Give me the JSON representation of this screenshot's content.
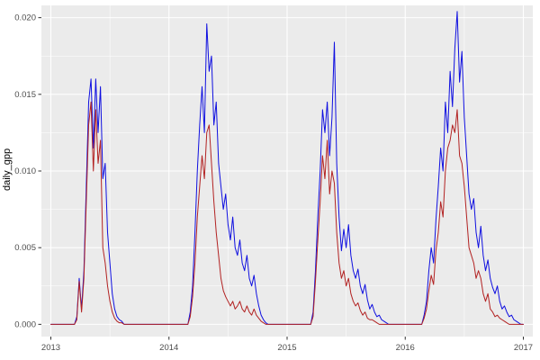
{
  "chart_data": {
    "type": "line",
    "title": "",
    "xlabel": "",
    "ylabel": "daily_gpp",
    "legend": "none",
    "grid": true,
    "theme": "ggplot-gray",
    "panel_background": "#EBEBEB",
    "grid_color": "#FFFFFF",
    "tick_mark_color": "#333333",
    "tick_text_color": "#4D4D4D",
    "xlim": [
      2012.92,
      2017.08
    ],
    "ylim": [
      -0.0008,
      0.0208
    ],
    "x_major_ticks": [
      2013,
      2014,
      2015,
      2016,
      2017
    ],
    "x_tick_labels": [
      "2013",
      "2014",
      "2015",
      "2016",
      "2017"
    ],
    "x_minor_ticks": [
      2013.5,
      2014.5,
      2015.5,
      2016.5
    ],
    "y_major_ticks": [
      0,
      0.005,
      0.01,
      0.015,
      0.02
    ],
    "y_tick_labels": [
      "0.000",
      "0.005",
      "0.010",
      "0.015",
      "0.020"
    ],
    "y_minor_ticks": [
      0.0025,
      0.0075,
      0.0125,
      0.0175
    ],
    "x_start": 2013.0,
    "x_step": 0.02,
    "x_end": 2017.0,
    "series": [
      {
        "name": "blue-series",
        "color": "#0F0FE0",
        "values": [
          0,
          0,
          0,
          0,
          0,
          0,
          0,
          0,
          0,
          0,
          0,
          0.0005,
          0.003,
          0.001,
          0.0035,
          0.009,
          0.0145,
          0.016,
          0.0115,
          0.016,
          0.0125,
          0.0155,
          0.0095,
          0.0105,
          0.006,
          0.004,
          0.002,
          0.001,
          0.0005,
          0.0003,
          0.0002,
          0,
          0,
          0,
          0,
          0,
          0,
          0,
          0,
          0,
          0,
          0,
          0,
          0,
          0,
          0,
          0,
          0,
          0,
          0,
          0,
          0,
          0,
          0,
          0,
          0,
          0,
          0,
          0,
          0.0008,
          0.0025,
          0.006,
          0.01,
          0.013,
          0.0155,
          0.0125,
          0.0196,
          0.0165,
          0.0175,
          0.013,
          0.0145,
          0.0105,
          0.009,
          0.0075,
          0.0085,
          0.0065,
          0.0055,
          0.007,
          0.005,
          0.0045,
          0.0055,
          0.004,
          0.0035,
          0.0045,
          0.003,
          0.0025,
          0.0032,
          0.002,
          0.0012,
          0.0006,
          0.0003,
          0.0001,
          0,
          0,
          0,
          0,
          0,
          0,
          0,
          0,
          0,
          0,
          0,
          0,
          0,
          0,
          0,
          0,
          0,
          0,
          0,
          0.0008,
          0.0035,
          0.007,
          0.01,
          0.014,
          0.0125,
          0.0145,
          0.011,
          0.0135,
          0.0184,
          0.0105,
          0.007,
          0.0048,
          0.0062,
          0.005,
          0.0065,
          0.0045,
          0.0035,
          0.003,
          0.0036,
          0.0025,
          0.002,
          0.0026,
          0.0016,
          0.001,
          0.0013,
          0.0008,
          0.0005,
          0.0006,
          0.0003,
          0.0002,
          0.0001,
          0,
          0,
          0,
          0,
          0,
          0,
          0,
          0,
          0,
          0,
          0,
          0,
          0,
          0,
          0,
          0.0006,
          0.0015,
          0.0035,
          0.005,
          0.004,
          0.0068,
          0.009,
          0.0115,
          0.01,
          0.0145,
          0.0125,
          0.0165,
          0.0142,
          0.018,
          0.0204,
          0.0158,
          0.0178,
          0.0135,
          0.011,
          0.0085,
          0.0075,
          0.0082,
          0.006,
          0.005,
          0.0064,
          0.0045,
          0.0035,
          0.0042,
          0.003,
          0.0024,
          0.002,
          0.0025,
          0.0015,
          0.001,
          0.0012,
          0.0008,
          0.0005,
          0.0006,
          0.0003,
          0.0002,
          0.0001,
          0,
          0
        ]
      },
      {
        "name": "red-series",
        "color": "#B22222",
        "values": [
          0,
          0,
          0,
          0,
          0,
          0,
          0,
          0,
          0,
          0,
          0,
          0.0003,
          0.0028,
          0.0008,
          0.003,
          0.008,
          0.013,
          0.0145,
          0.01,
          0.014,
          0.0105,
          0.012,
          0.005,
          0.004,
          0.0025,
          0.0015,
          0.0008,
          0.0004,
          0.0002,
          0.0001,
          0.0001,
          0,
          0,
          0,
          0,
          0,
          0,
          0,
          0,
          0,
          0,
          0,
          0,
          0,
          0,
          0,
          0,
          0,
          0,
          0,
          0,
          0,
          0,
          0,
          0,
          0,
          0,
          0,
          0,
          0.0005,
          0.0018,
          0.004,
          0.007,
          0.009,
          0.011,
          0.0095,
          0.0125,
          0.013,
          0.0105,
          0.008,
          0.006,
          0.0045,
          0.003,
          0.0022,
          0.0018,
          0.0015,
          0.0012,
          0.0015,
          0.001,
          0.0012,
          0.0015,
          0.001,
          0.0008,
          0.0012,
          0.0008,
          0.0006,
          0.001,
          0.0006,
          0.0004,
          0.0002,
          0.0001,
          0,
          0,
          0,
          0,
          0,
          0,
          0,
          0,
          0,
          0,
          0,
          0,
          0,
          0,
          0,
          0,
          0,
          0,
          0,
          0,
          0.0005,
          0.0028,
          0.0055,
          0.008,
          0.011,
          0.0095,
          0.012,
          0.0085,
          0.01,
          0.0092,
          0.006,
          0.004,
          0.003,
          0.0035,
          0.0025,
          0.003,
          0.002,
          0.0015,
          0.0012,
          0.0014,
          0.0009,
          0.0006,
          0.0008,
          0.0004,
          0.0003,
          0.0003,
          0.0002,
          0.0001,
          0,
          0,
          0,
          0,
          0,
          0,
          0,
          0,
          0,
          0,
          0,
          0,
          0,
          0,
          0,
          0,
          0,
          0,
          0,
          0.0004,
          0.001,
          0.0022,
          0.0032,
          0.0026,
          0.0048,
          0.006,
          0.008,
          0.007,
          0.01,
          0.0115,
          0.012,
          0.013,
          0.0125,
          0.014,
          0.011,
          0.0105,
          0.009,
          0.007,
          0.005,
          0.0045,
          0.004,
          0.003,
          0.0035,
          0.003,
          0.002,
          0.0015,
          0.002,
          0.001,
          0.0008,
          0.0005,
          0.0006,
          0.0004,
          0.0003,
          0.0002,
          0.0001,
          0,
          0,
          0,
          0,
          0,
          0,
          0
        ]
      }
    ]
  }
}
